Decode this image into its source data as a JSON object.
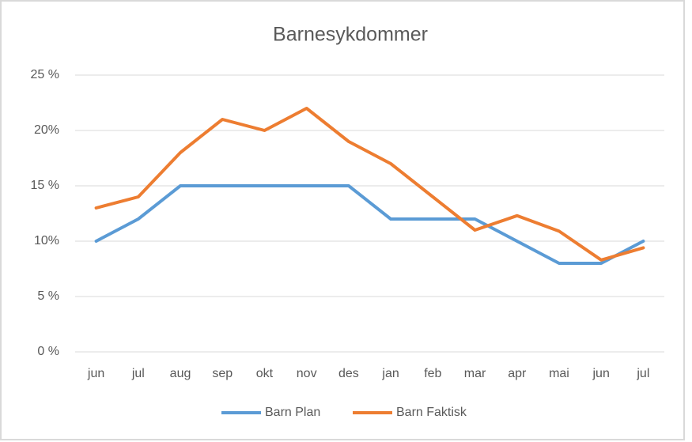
{
  "chart_data": {
    "type": "line",
    "title": "Barnesykdommer",
    "categories": [
      "jun",
      "jul",
      "aug",
      "sep",
      "okt",
      "nov",
      "des",
      "jan",
      "feb",
      "mar",
      "apr",
      "mai",
      "jun",
      "jul"
    ],
    "series": [
      {
        "name": "Barn Plan",
        "color": "#5b9bd5",
        "values": [
          10,
          12,
          15,
          15,
          15,
          15,
          15,
          12,
          12,
          12,
          10,
          8,
          8,
          10
        ]
      },
      {
        "name": "Barn Faktisk",
        "color": "#ed7d31",
        "values": [
          13,
          14,
          18,
          21,
          20,
          22,
          19,
          17,
          14,
          11,
          12.3,
          10.9,
          8.3,
          9.4
        ]
      }
    ],
    "ylim": [
      0,
      25
    ],
    "yticks": [
      {
        "value": 0,
        "label": "0 %"
      },
      {
        "value": 5,
        "label": "5 %"
      },
      {
        "value": 10,
        "label": "10%"
      },
      {
        "value": 15,
        "label": "15 %"
      },
      {
        "value": 20,
        "label": "20%"
      },
      {
        "value": 25,
        "label": "25 %"
      }
    ],
    "grid": true,
    "legend": "bottom"
  }
}
